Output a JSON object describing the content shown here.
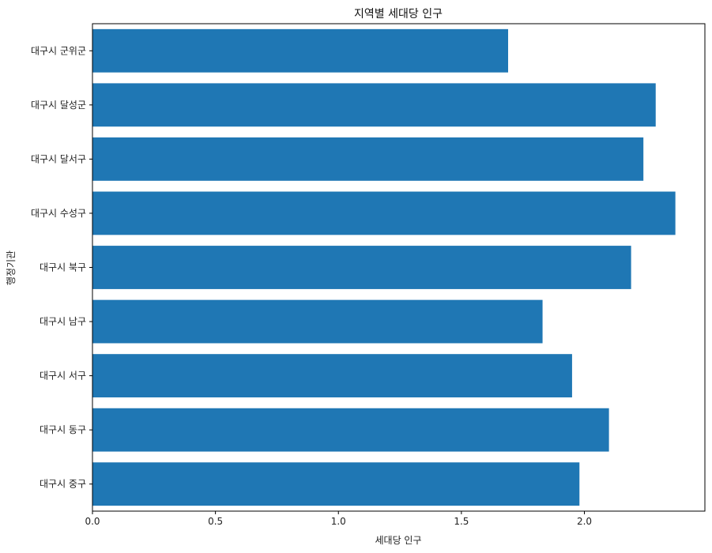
{
  "chart_data": {
    "type": "bar",
    "orientation": "horizontal",
    "title": "지역별 세대당 인구",
    "xlabel": "세대당 인구",
    "ylabel": "행정기관",
    "categories": [
      "대구시 중구",
      "대구시 동구",
      "대구시 서구",
      "대구시 남구",
      "대구시 북구",
      "대구시 수성구",
      "대구시 달서구",
      "대구시 달성군",
      "대구시 군위군"
    ],
    "values": [
      1.98,
      2.1,
      1.95,
      1.83,
      2.19,
      2.37,
      2.24,
      2.29,
      1.69
    ],
    "xlim": [
      0,
      2.49
    ],
    "xticks": [
      "0.0",
      "0.5",
      "1.0",
      "1.5",
      "2.0"
    ],
    "grid": false,
    "bar_color": "#1f77b4"
  }
}
